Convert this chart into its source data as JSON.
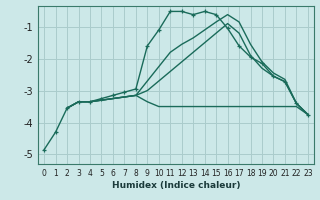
{
  "xlabel": "Humidex (Indice chaleur)",
  "bg_color": "#cce8e8",
  "grid_color": "#aacccc",
  "line_color": "#1a6b5a",
  "xlim": [
    -0.5,
    23.5
  ],
  "ylim": [
    -5.3,
    -0.35
  ],
  "xticks": [
    0,
    1,
    2,
    3,
    4,
    5,
    6,
    7,
    8,
    9,
    10,
    11,
    12,
    13,
    14,
    15,
    16,
    17,
    18,
    19,
    20,
    21,
    22,
    23
  ],
  "yticks": [
    -5,
    -4,
    -3,
    -2,
    -1
  ],
  "line1_x": [
    0,
    1,
    2,
    3,
    4,
    5,
    6,
    7,
    8,
    9,
    10,
    11,
    12,
    13,
    14,
    15,
    16,
    17,
    18,
    19,
    20,
    21,
    22,
    23
  ],
  "line1_y": [
    -4.85,
    -4.3,
    -3.55,
    -3.35,
    -3.35,
    -3.25,
    -3.15,
    -3.05,
    -2.95,
    -1.6,
    -1.1,
    -0.52,
    -0.52,
    -0.62,
    -0.52,
    -0.62,
    -1.05,
    -1.6,
    -1.95,
    -2.15,
    -2.55,
    -2.72,
    -3.4,
    -3.75
  ],
  "line2_x": [
    2,
    3,
    4,
    5,
    6,
    7,
    8,
    9,
    10,
    11,
    12,
    13,
    14,
    15,
    16,
    17,
    18,
    19,
    20,
    21,
    22,
    23
  ],
  "line2_y": [
    -3.55,
    -3.35,
    -3.35,
    -3.3,
    -3.25,
    -3.2,
    -3.15,
    -3.35,
    -3.5,
    -3.5,
    -3.5,
    -3.5,
    -3.5,
    -3.5,
    -3.5,
    -3.5,
    -3.5,
    -3.5,
    -3.5,
    -3.5,
    -3.5,
    -3.75
  ],
  "line3_x": [
    2,
    3,
    4,
    5,
    6,
    7,
    8,
    9,
    10,
    11,
    12,
    13,
    14,
    15,
    16,
    17,
    18,
    19,
    20,
    21,
    22,
    23
  ],
  "line3_y": [
    -3.55,
    -3.35,
    -3.35,
    -3.3,
    -3.25,
    -3.2,
    -3.15,
    -3.0,
    -2.7,
    -2.4,
    -2.1,
    -1.8,
    -1.5,
    -1.2,
    -0.9,
    -1.2,
    -1.9,
    -2.3,
    -2.55,
    -2.72,
    -3.4,
    -3.75
  ],
  "line4_x": [
    2,
    3,
    4,
    5,
    6,
    7,
    8,
    9,
    10,
    11,
    12,
    13,
    14,
    15,
    16,
    17,
    18,
    19,
    20,
    21,
    22,
    23
  ],
  "line4_y": [
    -3.55,
    -3.35,
    -3.35,
    -3.3,
    -3.25,
    -3.2,
    -3.15,
    -2.7,
    -2.25,
    -1.8,
    -1.55,
    -1.35,
    -1.1,
    -0.85,
    -0.62,
    -0.85,
    -1.55,
    -2.1,
    -2.45,
    -2.65,
    -3.4,
    -3.75
  ]
}
